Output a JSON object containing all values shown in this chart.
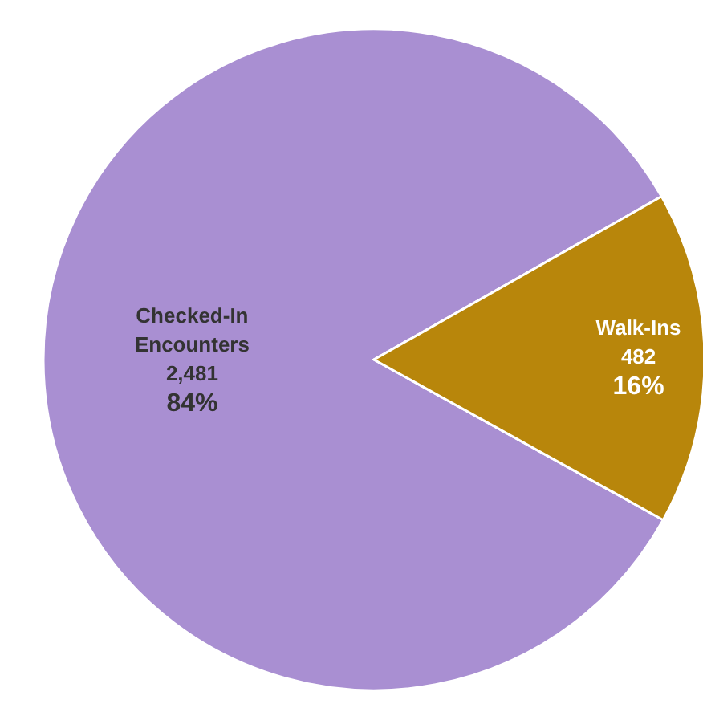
{
  "chart_data": {
    "type": "pie",
    "categories": [
      "Checked-In Encounters",
      "Walk-Ins"
    ],
    "values": [
      2481,
      482
    ],
    "colors": [
      "#a98fd2",
      "#b8860b"
    ],
    "value_labels": [
      "2,481",
      "482"
    ],
    "annotations": [
      "84%",
      "16%"
    ]
  }
}
